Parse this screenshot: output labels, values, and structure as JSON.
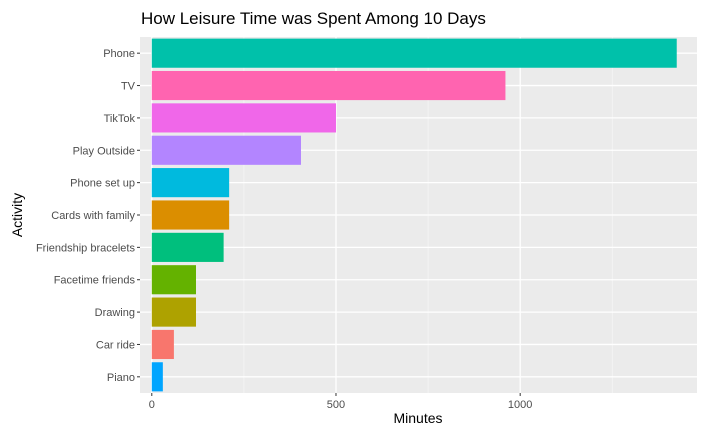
{
  "chart_data": {
    "type": "bar",
    "orientation": "horizontal",
    "title": "How Leisure Time was Spent Among 10 Days",
    "xlabel": "Minutes",
    "ylabel": "Activity",
    "xlim": [
      -32,
      1480
    ],
    "x_ticks": [
      0,
      500,
      1000
    ],
    "grid": true,
    "legend": "none",
    "categories": [
      "Phone",
      "TV",
      "TikTok",
      "Play Outside",
      "Phone set up",
      "Cards with family",
      "Friendship bracelets",
      "Facetime friends",
      "Drawing",
      "Car ride",
      "Piano"
    ],
    "values": [
      1425,
      960,
      500,
      405,
      210,
      210,
      195,
      120,
      120,
      60,
      30
    ],
    "colors": [
      "#00C1AA",
      "#FF64B0",
      "#F067E9",
      "#B385FF",
      "#00BADE",
      "#DB8E00",
      "#00BF7D",
      "#64B200",
      "#AEA200",
      "#F8766D",
      "#00A5FF"
    ]
  }
}
